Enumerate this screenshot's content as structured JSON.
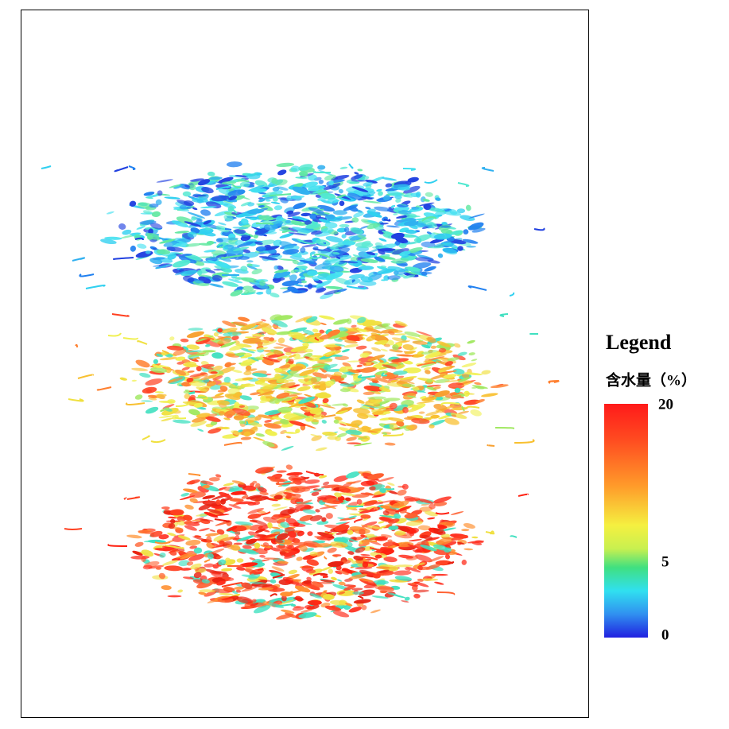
{
  "legend": {
    "title": "Legend",
    "label": "含水量（%）",
    "ticks": [
      "20",
      "5",
      "0"
    ]
  }
}
